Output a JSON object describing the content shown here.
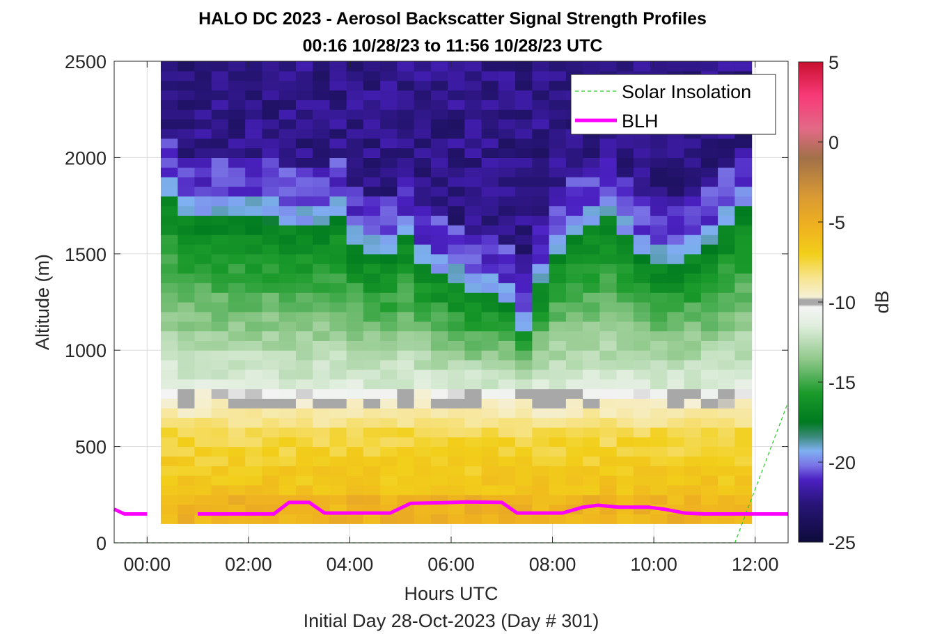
{
  "chart_data": {
    "type": "heatmap",
    "title": "HALO DC 2023 - Aerosol Backscatter Signal Strength Profiles",
    "subtitle": "00:16 10/28/23 to 11:56 10/28/23  UTC",
    "xlabel": "Hours UTC",
    "xlabel2": "Initial Day 28-Oct-2023 (Day # 301)",
    "ylabel": "Altitude (m)",
    "colorbar_label": "dB",
    "xlim": [
      -0.65,
      12.65
    ],
    "ylim": [
      0,
      2500
    ],
    "clim": [
      -25,
      5
    ],
    "x_ticks": [
      0,
      2,
      4,
      6,
      8,
      10,
      12
    ],
    "x_tick_labels": [
      "00:00",
      "02:00",
      "04:00",
      "06:00",
      "08:00",
      "10:00",
      "12:00"
    ],
    "y_ticks": [
      0,
      500,
      1000,
      1500,
      2000,
      2500
    ],
    "y_tick_labels": [
      "0",
      "500",
      "1000",
      "1500",
      "2000",
      "2500"
    ],
    "colorbar_ticks": [
      5,
      0,
      -5,
      -10,
      -15,
      -20,
      -25
    ],
    "colorbar_tick_labels": [
      "5",
      "0",
      "-5",
      "-10",
      "-15",
      "-20",
      "-25"
    ],
    "grid": true,
    "legend_position": "top-right",
    "heatmap": {
      "x_start": 0.27,
      "x_end": 11.93,
      "n_cols": 35,
      "y_bottom": 100,
      "y_top": 2500,
      "n_rows": 48,
      "description_of_profile": "dB values: about -6 near ground, about -10 at 750 m, green -13 to -17 from 800 to 1650 m, purple -21 to -24 aloft; lower green-purple boundary near 1100-1400 m around 06:00-07:30",
      "boundary_m": [
        1800,
        1700,
        1680,
        1680,
        1680,
        1680,
        1680,
        1660,
        1650,
        1650,
        1700,
        1550,
        1500,
        1480,
        1600,
        1450,
        1400,
        1350,
        1300,
        1300,
        1250,
        1100,
        1350,
        1500,
        1600,
        1650,
        1700,
        1600,
        1500,
        1450,
        1450,
        1500,
        1550,
        1650,
        1750
      ]
    },
    "series": [
      {
        "name": "Solar Insolation",
        "color": "#22cc22",
        "style": "dashed",
        "x": [
          -0.65,
          11.6,
          12.65
        ],
        "y": [
          0,
          0,
          730
        ]
      },
      {
        "name": "BLH",
        "color": "#ff00ff",
        "style": "solid",
        "x": [
          -0.65,
          -0.45,
          0.0,
          0.5,
          1.0,
          2.0,
          2.5,
          2.8,
          3.2,
          3.5,
          4.0,
          4.8,
          5.2,
          5.8,
          6.3,
          7.0,
          7.3,
          7.6,
          8.2,
          8.6,
          8.9,
          9.3,
          9.9,
          10.2,
          10.6,
          11.0,
          11.5,
          12.0,
          12.65
        ],
        "y": [
          175,
          150,
          150,
          null,
          150,
          150,
          150,
          210,
          210,
          155,
          155,
          155,
          205,
          208,
          212,
          210,
          155,
          155,
          155,
          185,
          195,
          185,
          185,
          175,
          155,
          150,
          150,
          150,
          150
        ]
      }
    ]
  },
  "legend": {
    "solar_label": "Solar Insolation",
    "blh_label": "BLH"
  },
  "colors": {
    "axis": "#262626",
    "grid": "#dcdcdc",
    "blh": "#ff00ff",
    "solar": "#22cc22"
  }
}
